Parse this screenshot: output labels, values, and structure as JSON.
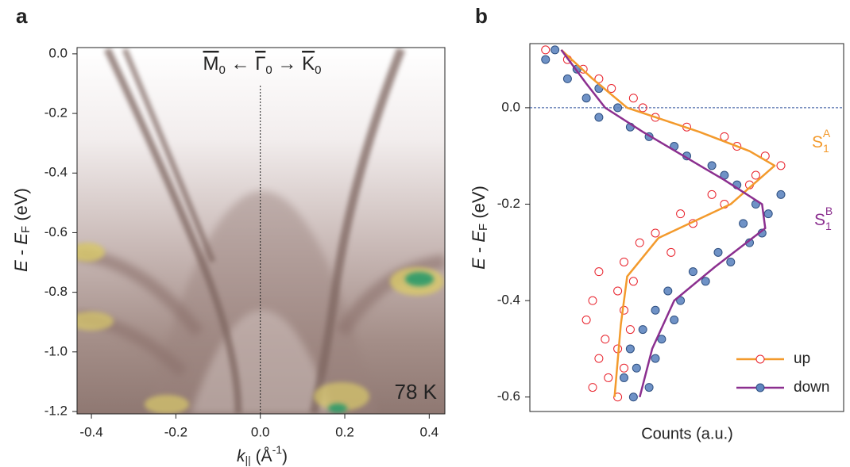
{
  "chart_data": [
    {
      "type": "heatmap",
      "panel_label": "a",
      "title_parts": [
        "M",
        "0",
        " ← ",
        "Γ",
        "0",
        " → ",
        "K",
        "0"
      ],
      "xlabel": [
        "k",
        "||",
        " (Å",
        "-1",
        ")"
      ],
      "ylabel": [
        "E",
        " - ",
        "E",
        "F",
        " (eV)"
      ],
      "annotation": "78 K",
      "xlim": [
        -0.434,
        0.437
      ],
      "ylim": [
        -1.208,
        0.021
      ],
      "xticks": [
        -0.4,
        -0.2,
        {
          "value": 0,
          "label": "0.0"
        },
        0.2,
        0.4
      ],
      "yticks": [
        {
          "value": 0,
          "label": "0.0"
        },
        -0.2,
        -0.4,
        -0.6,
        -0.8,
        {
          "value": -1,
          "label": "-1.0"
        },
        -1.2
      ],
      "reference_line": 0
    },
    {
      "type": "scatter",
      "panel_label": "b",
      "xlabel": "Counts (a.u.)",
      "ylabel": [
        "E",
        " - ",
        "E",
        "F",
        " (eV)"
      ],
      "xlim": [
        0,
        1
      ],
      "ylim": [
        -0.63,
        0.133
      ],
      "yticks": [
        {
          "value": 0,
          "label": "0.0"
        },
        -0.2,
        -0.4,
        -0.6
      ],
      "reference_line": 0,
      "legend": "lower right",
      "annotations": [
        {
          "parts": [
            "S",
            "1",
            "A"
          ],
          "color": "#f39a2c"
        },
        {
          "parts": [
            "S",
            "1",
            "B"
          ],
          "color": "#8b2f8f"
        }
      ],
      "series": [
        {
          "name": "up",
          "color": "#e8202a",
          "line_color": "#f39a2c",
          "filled": false,
          "x": [
            0.05,
            0.12,
            0.17,
            0.22,
            0.26,
            0.33,
            0.36,
            0.4,
            0.5,
            0.62,
            0.66,
            0.75,
            0.8,
            0.72,
            0.7,
            0.58,
            0.62,
            0.48,
            0.52,
            0.4,
            0.35,
            0.45,
            0.3,
            0.22,
            0.33,
            0.28,
            0.2,
            0.3,
            0.18,
            0.32,
            0.24,
            0.28,
            0.22,
            0.3,
            0.25,
            0.2,
            0.28
          ],
          "values": [
            0.12,
            0.1,
            0.08,
            0.06,
            0.04,
            0.02,
            0.0,
            -0.02,
            -0.04,
            -0.06,
            -0.08,
            -0.1,
            -0.12,
            -0.14,
            -0.16,
            -0.18,
            -0.2,
            -0.22,
            -0.24,
            -0.26,
            -0.28,
            -0.3,
            -0.32,
            -0.34,
            -0.36,
            -0.38,
            -0.4,
            -0.42,
            -0.44,
            -0.46,
            -0.48,
            -0.5,
            -0.52,
            -0.54,
            -0.56,
            -0.58,
            -0.6
          ],
          "fit_x": [
            0.1,
            0.2,
            0.31,
            0.54,
            0.7,
            0.78,
            0.64,
            0.41,
            0.31,
            0.29,
            0.27
          ],
          "fit_values": [
            0.12,
            0.06,
            0.0,
            -0.05,
            -0.09,
            -0.12,
            -0.2,
            -0.27,
            -0.35,
            -0.45,
            -0.6
          ]
        },
        {
          "name": "down",
          "color": "#5f86c0",
          "line_color": "#8b2f8f",
          "filled": true,
          "x": [
            0.08,
            0.05,
            0.15,
            0.12,
            0.22,
            0.18,
            0.28,
            0.22,
            0.32,
            0.38,
            0.46,
            0.5,
            0.58,
            0.62,
            0.66,
            0.8,
            0.72,
            0.76,
            0.68,
            0.74,
            0.7,
            0.6,
            0.64,
            0.52,
            0.56,
            0.44,
            0.48,
            0.4,
            0.46,
            0.36,
            0.42,
            0.32,
            0.4,
            0.34,
            0.3,
            0.38,
            0.33
          ],
          "values": [
            0.12,
            0.1,
            0.08,
            0.06,
            0.04,
            0.02,
            0.0,
            -0.02,
            -0.04,
            -0.06,
            -0.08,
            -0.1,
            -0.12,
            -0.14,
            -0.16,
            -0.18,
            -0.2,
            -0.22,
            -0.24,
            -0.26,
            -0.28,
            -0.3,
            -0.32,
            -0.34,
            -0.36,
            -0.38,
            -0.4,
            -0.42,
            -0.44,
            -0.46,
            -0.48,
            -0.5,
            -0.52,
            -0.54,
            -0.56,
            -0.58,
            -0.6
          ],
          "fit_x": [
            0.1,
            0.18,
            0.24,
            0.36,
            0.49,
            0.62,
            0.74,
            0.75,
            0.59,
            0.46,
            0.39,
            0.35
          ],
          "fit_values": [
            0.12,
            0.05,
            0.0,
            -0.05,
            -0.1,
            -0.15,
            -0.2,
            -0.25,
            -0.33,
            -0.4,
            -0.5,
            -0.6
          ]
        }
      ]
    }
  ]
}
